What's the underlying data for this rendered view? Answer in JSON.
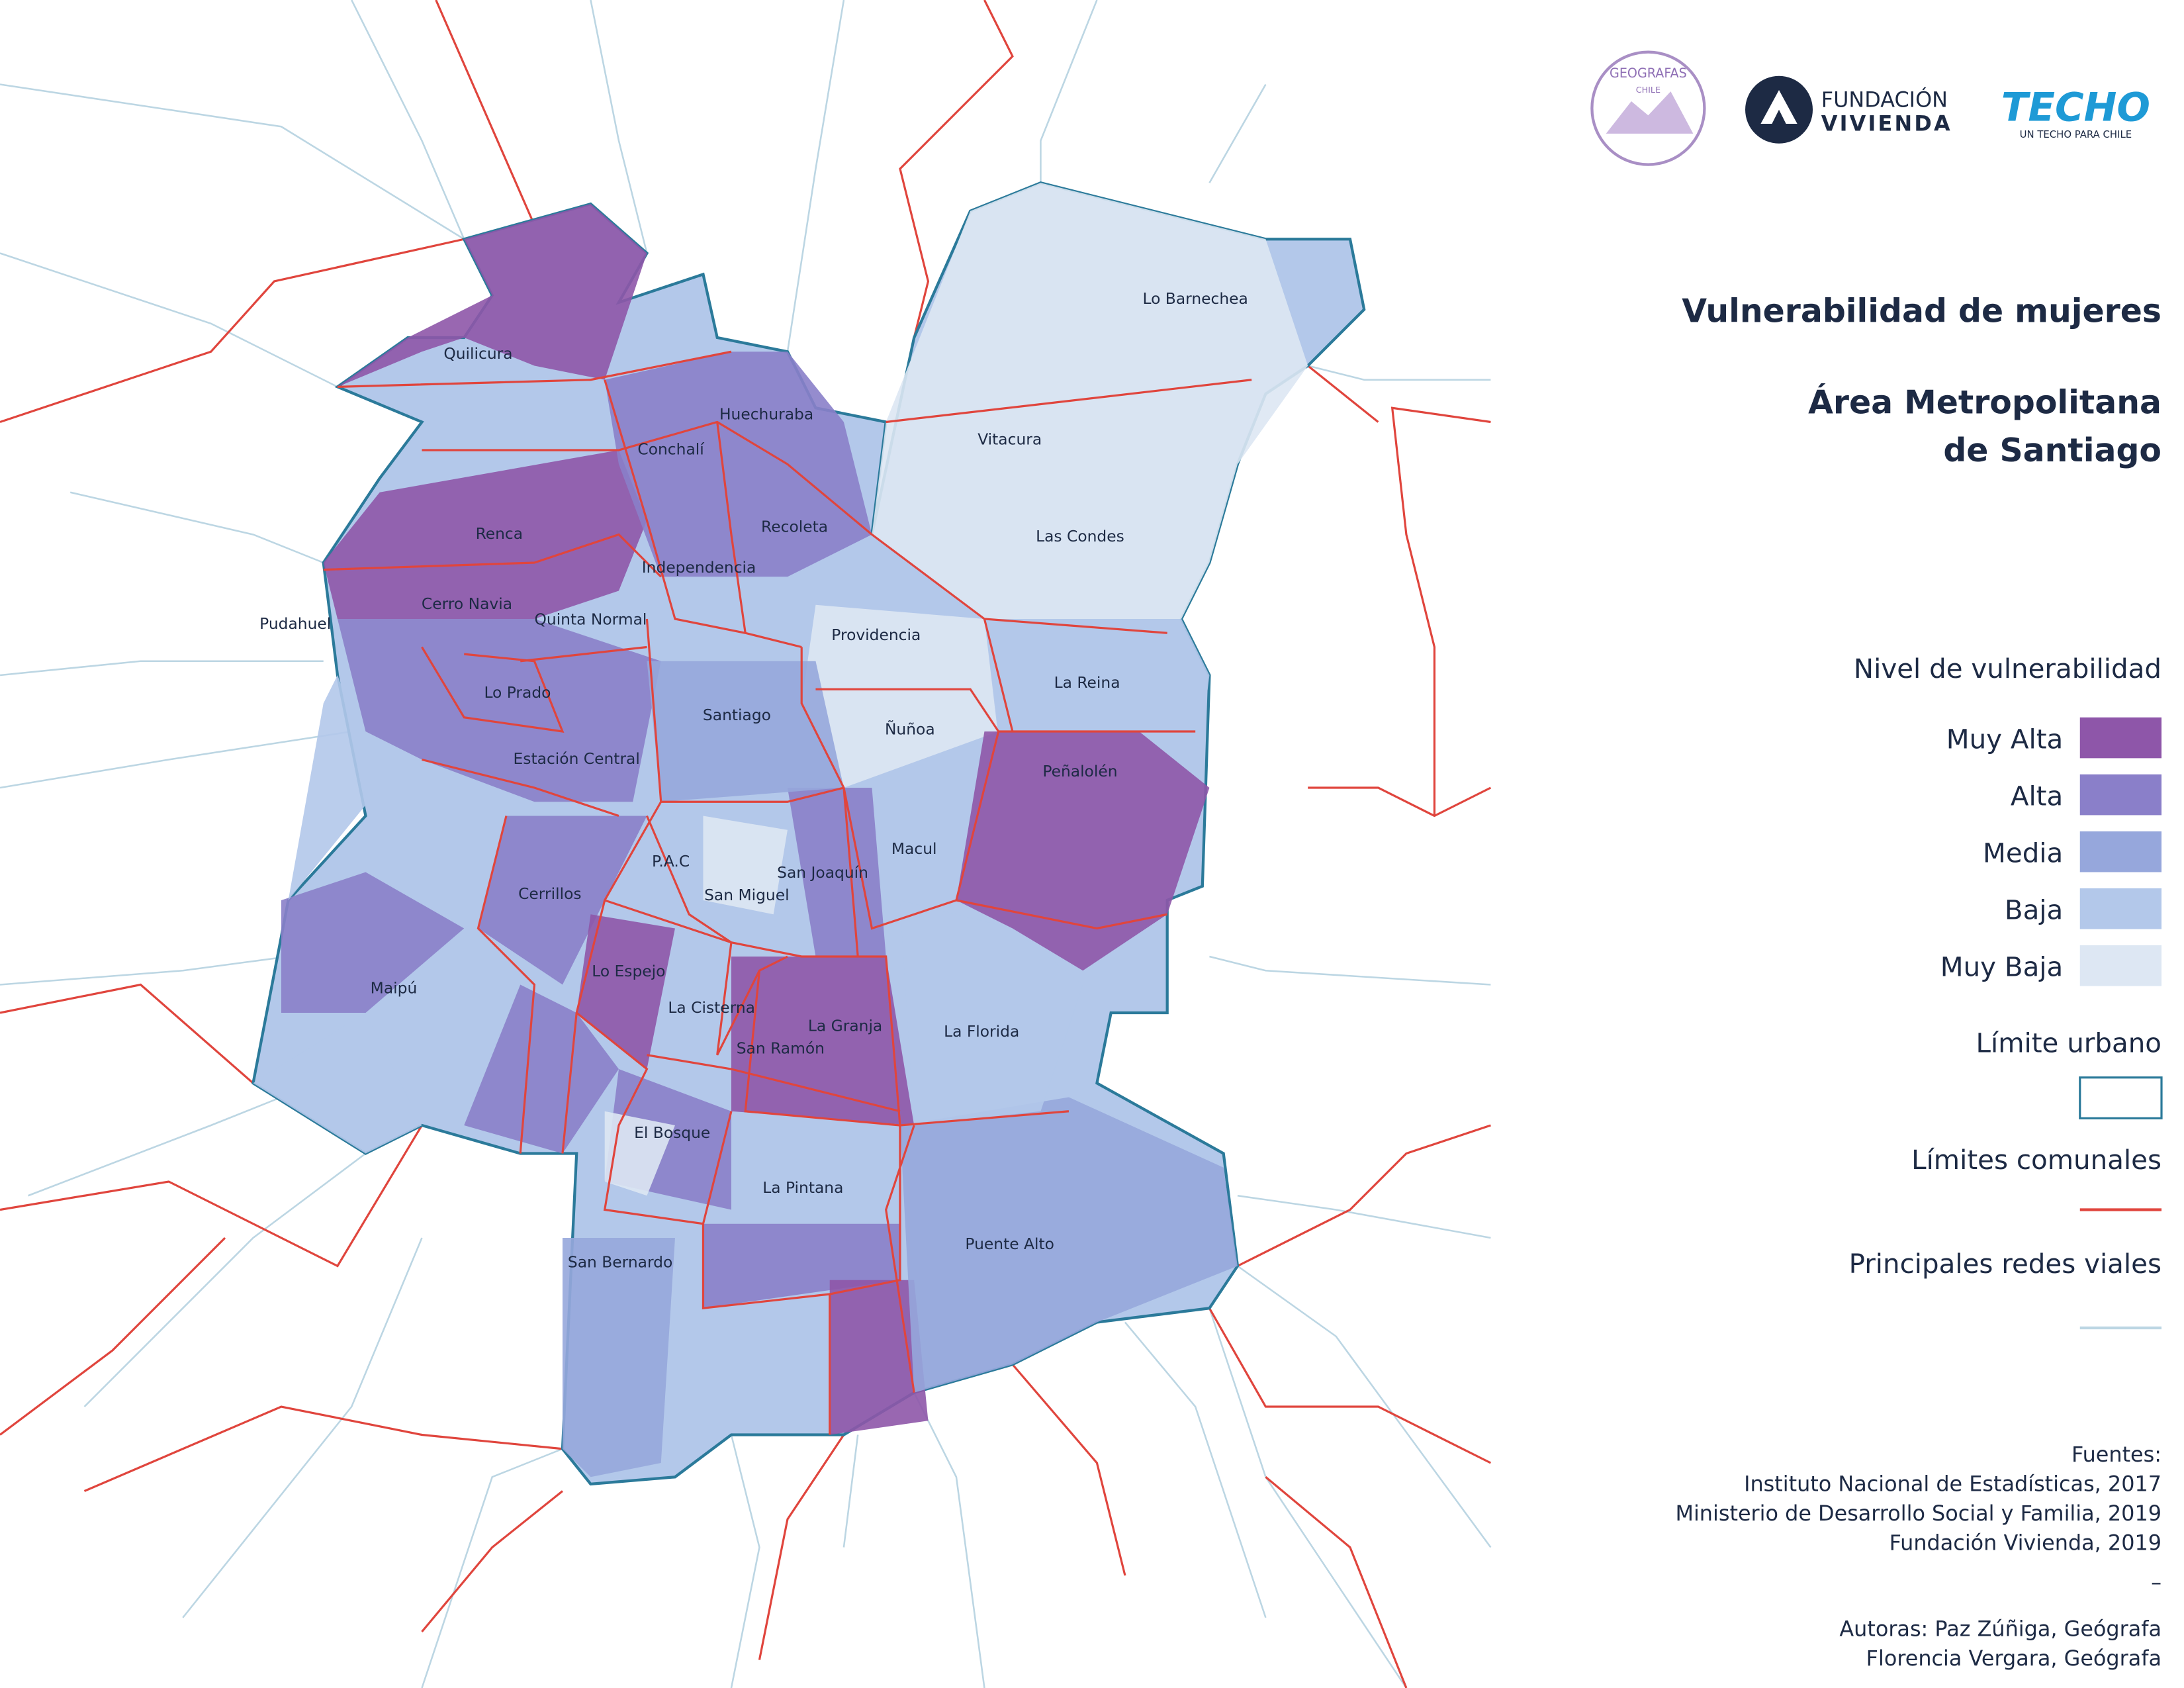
{
  "logos": {
    "geografas": "GEOGRAFAS",
    "geografas_sub": "CHILE",
    "fundacion_1": "FUNDACIÓN",
    "fundacion_2": "VIVIENDA",
    "techo": "TECHO",
    "techo_sub": "UN TECHO PARA CHILE"
  },
  "title": "Vulnerabilidad de mujeres",
  "subtitle": [
    "Área Metropolitana",
    "de Santiago"
  ],
  "legend": {
    "title": "Nivel de vulnerabilidad",
    "levels": [
      {
        "label": "Muy Alta",
        "color": "#8e56a9"
      },
      {
        "label": "Alta",
        "color": "#8a7fc9"
      },
      {
        "label": "Media",
        "color": "#96a7dc"
      },
      {
        "label": "Baja",
        "color": "#b3c8ea"
      },
      {
        "label": "Muy Baja",
        "color": "#dde7f3"
      }
    ],
    "urban_limit": {
      "label": "Límite urbano",
      "color": "#2b7a9a"
    },
    "communal_limits": {
      "label": "Límites comunales",
      "color": "#e0453d"
    },
    "roads": {
      "label": "Principales redes viales",
      "color": "#bcd6e3"
    }
  },
  "comunas": [
    "Quilicura",
    "Huechuraba",
    "Conchalí",
    "Lo Barnechea",
    "Vitacura",
    "Renca",
    "Recoleta",
    "Independencia",
    "Las Condes",
    "Cerro Navia",
    "Quinta Normal",
    "Pudahuel",
    "Providencia",
    "La Reina",
    "Lo Prado",
    "Santiago",
    "Ñuñoa",
    "Estación Central",
    "Peñalolén",
    "Macul",
    "P.A.C",
    "San Joaquín",
    "San Miguel",
    "Cerrillos",
    "Lo Espejo",
    "Maipú",
    "La Cisterna",
    "La Granja",
    "La Florida",
    "San Ramón",
    "El Bosque",
    "La Pintana",
    "Puente Alto",
    "San Bernardo"
  ],
  "sources": {
    "heading": "Fuentes:",
    "items": [
      "Instituto Nacional de Estadísticas, 2017",
      "Ministerio de Desarrollo Social y Familia, 2019",
      "Fundación Vivienda, 2019"
    ]
  },
  "separator": "–",
  "authors": [
    "Autoras: Paz Zúñiga, Geógrafa",
    "Florencia Vergara, Geógrafa"
  ]
}
